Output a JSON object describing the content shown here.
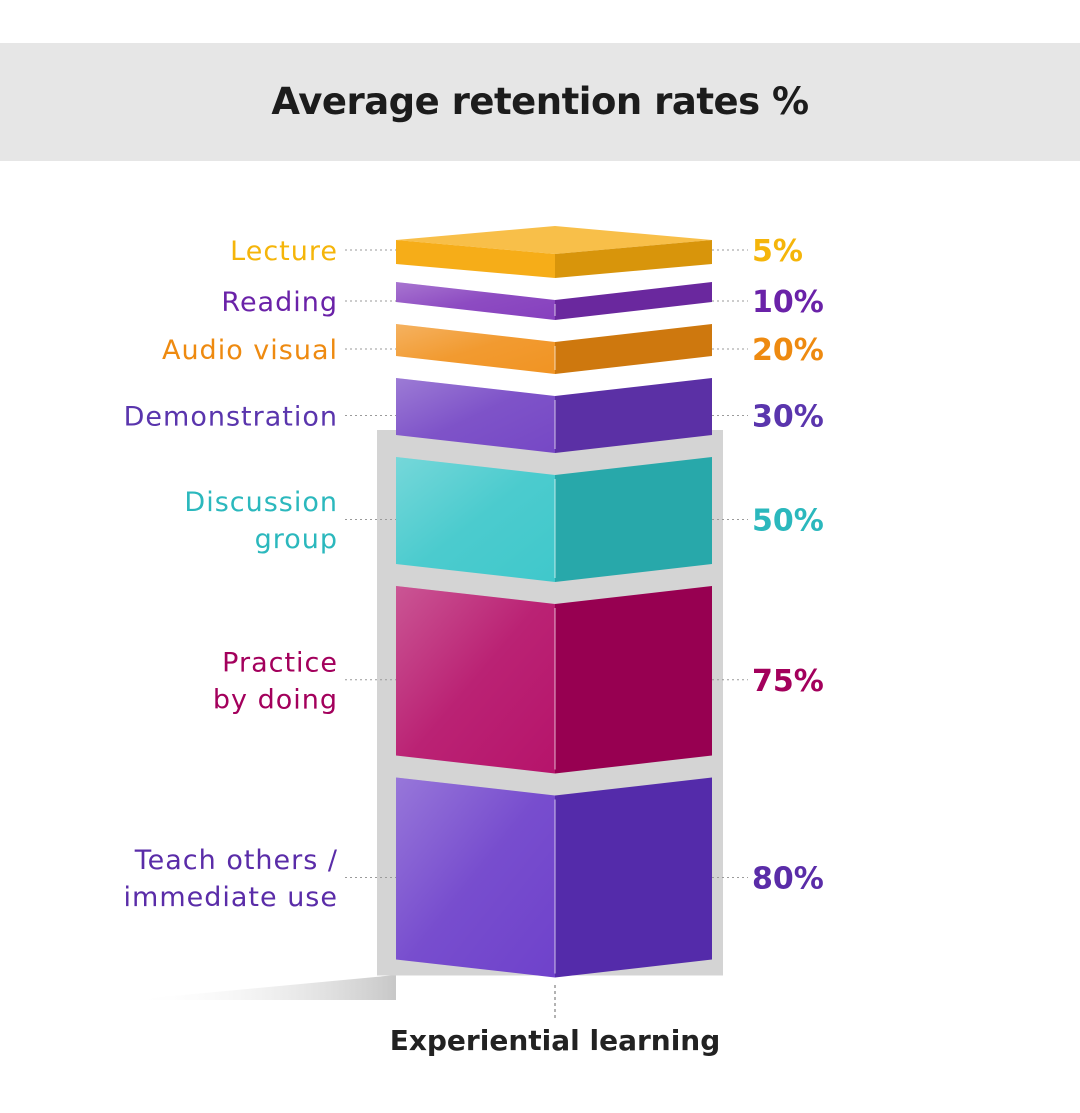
{
  "chart_data": {
    "type": "bar",
    "title": "Average retention rates %",
    "xlabel": "Experiential learning",
    "categories": [
      "Lecture",
      "Reading",
      "Audio visual",
      "Demonstration",
      "Discussion group",
      "Practice by doing",
      "Teach others / immediate use"
    ],
    "category_lines": [
      [
        "Lecture"
      ],
      [
        "Reading"
      ],
      [
        "Audio visual"
      ],
      [
        "Demonstration"
      ],
      [
        "Discussion",
        "group"
      ],
      [
        "Practice",
        "by doing"
      ],
      [
        "Teach others /",
        "immediate use"
      ]
    ],
    "values": [
      5,
      10,
      20,
      30,
      50,
      75,
      80
    ],
    "value_labels": [
      "5%",
      "10%",
      "20%",
      "30%",
      "50%",
      "75%",
      "80%"
    ],
    "colors": [
      "#f5a90c",
      "#7b2fb8",
      "#f08b10",
      "#6a38c0",
      "#2fc3c6",
      "#b0005e",
      "#6232c6"
    ],
    "label_colors": [
      "#f5b50a",
      "#6a22a8",
      "#ee8a10",
      "#5a35ad",
      "#2bb8bd",
      "#a3005c",
      "#5a2ca8"
    ]
  }
}
